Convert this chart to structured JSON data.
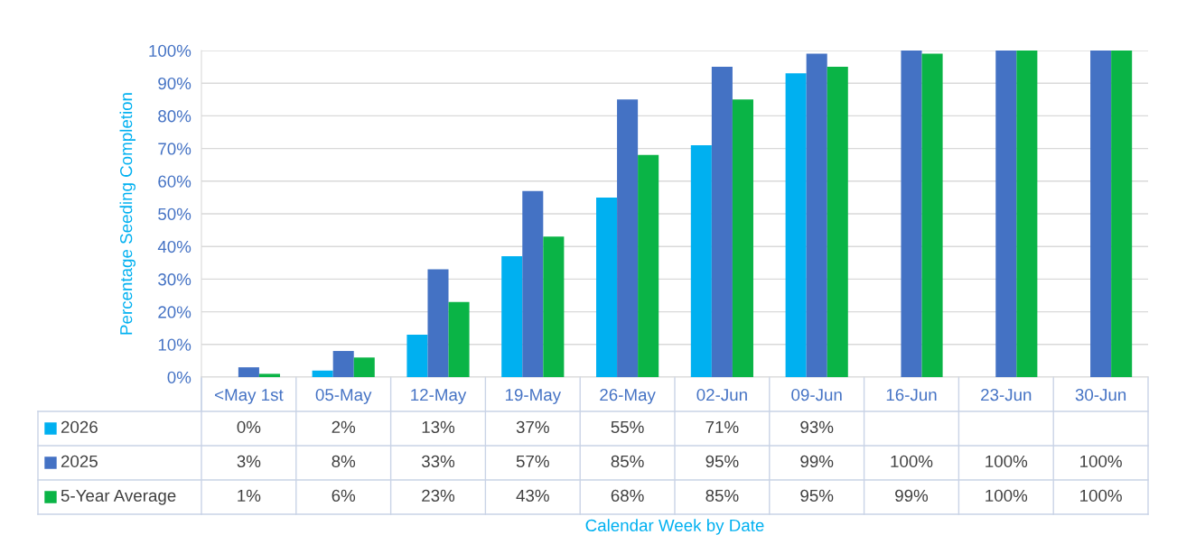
{
  "chart_data": {
    "type": "bar",
    "annotations": [
      "Calendar Week by Date"
    ],
    "ylabel": "Percentage Seeding Completion",
    "categories": [
      "<May 1st",
      "05-May",
      "12-May",
      "19-May",
      "26-May",
      "02-Jun",
      "09-Jun",
      "16-Jun",
      "23-Jun",
      "30-Jun"
    ],
    "series": [
      {
        "name": "2026",
        "color": "#00b0f0",
        "values": [
          0,
          2,
          13,
          37,
          55,
          71,
          93,
          null,
          null,
          null
        ],
        "value_labels": [
          "0%",
          "2%",
          "13%",
          "37%",
          "55%",
          "71%",
          "93%",
          null,
          null,
          null
        ]
      },
      {
        "name": "2025",
        "color": "#4472c4",
        "values": [
          3,
          8,
          33,
          57,
          85,
          95,
          99,
          100,
          100,
          100
        ],
        "value_labels": [
          "3%",
          "8%",
          "33%",
          "57%",
          "85%",
          "95%",
          "99%",
          "100%",
          "100%",
          "100%"
        ]
      },
      {
        "name": "5-Year Average",
        "color": "#0ab446",
        "values": [
          1,
          6,
          23,
          43,
          68,
          85,
          95,
          99,
          100,
          100
        ],
        "value_labels": [
          "1%",
          "6%",
          "23%",
          "43%",
          "68%",
          "85%",
          "95%",
          "99%",
          "100%",
          "100%"
        ]
      }
    ],
    "ylim": [
      0,
      100
    ],
    "yticks": [
      {
        "value": 0,
        "label": "0%"
      },
      {
        "value": 10,
        "label": "10%"
      },
      {
        "value": 20,
        "label": "20%"
      },
      {
        "value": 30,
        "label": "30%"
      },
      {
        "value": 40,
        "label": "40%"
      },
      {
        "value": 50,
        "label": "50%"
      },
      {
        "value": 60,
        "label": "60%"
      },
      {
        "value": 70,
        "label": "70%"
      },
      {
        "value": 80,
        "label": "80%"
      },
      {
        "value": 90,
        "label": "90%"
      },
      {
        "value": 100,
        "label": "100%"
      }
    ],
    "grid": "y",
    "legend": "bottom"
  }
}
